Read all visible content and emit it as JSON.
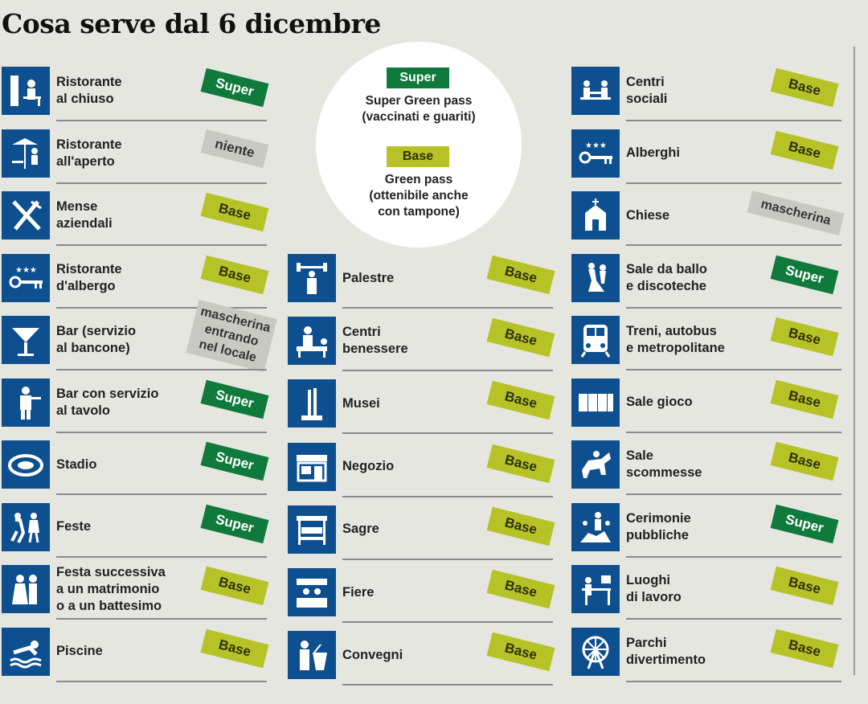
{
  "title": "Cosa serve dal 6 dicembre",
  "legend": {
    "super_badge": "Super",
    "super_text": "Super Green pass\n(vaccinati e guariti)",
    "base_badge": "Base",
    "base_text": "Green pass\n(ottenibile anche\ncon tampone)"
  },
  "colors": {
    "icon_bg": "#0e4f8f",
    "base": "#b6c225",
    "super": "#0f7a3b",
    "neutral": "#c9c9c4"
  },
  "col1": [
    {
      "label": "Ristorante\nal chiuso",
      "badge": "Super",
      "type": "super",
      "icon": "restaurant-indoor-icon"
    },
    {
      "label": "Ristorante\nall'aperto",
      "badge": "niente",
      "type": "niente",
      "icon": "restaurant-outdoor-icon"
    },
    {
      "label": "Mense\naziendali",
      "badge": "Base",
      "type": "base",
      "icon": "fork-knife-icon"
    },
    {
      "label": "Ristorante\nd'albergo",
      "badge": "Base",
      "type": "base",
      "icon": "hotel-key-icon"
    },
    {
      "label": "Bar (servizio\nal bancone)",
      "badge": "mascherina\nentrando\nnel locale",
      "type": "multi",
      "icon": "cocktail-icon"
    },
    {
      "label": "Bar con servizio\nal tavolo",
      "badge": "Super",
      "type": "super",
      "icon": "waiter-icon"
    },
    {
      "label": "Stadio",
      "badge": "Super",
      "type": "super",
      "icon": "stadium-icon"
    },
    {
      "label": "Feste",
      "badge": "Super",
      "type": "super",
      "icon": "party-icon"
    },
    {
      "label": "Festa successiva\na un matrimonio\no a un battesimo",
      "badge": "Base",
      "type": "base",
      "icon": "wedding-icon"
    },
    {
      "label": "Piscine",
      "badge": "Base",
      "type": "base",
      "icon": "swimmer-icon"
    }
  ],
  "col2": [
    {
      "label": "Palestre",
      "badge": "Base",
      "type": "base",
      "icon": "weightlifting-icon"
    },
    {
      "label": "Centri\nbenessere",
      "badge": "Base",
      "type": "base",
      "icon": "spa-massage-icon"
    },
    {
      "label": "Musei",
      "badge": "Base",
      "type": "base",
      "icon": "museum-icon"
    },
    {
      "label": "Negozio",
      "badge": "Base",
      "type": "base",
      "icon": "shop-icon"
    },
    {
      "label": "Sagre",
      "badge": "Base",
      "type": "base",
      "icon": "food-stall-icon"
    },
    {
      "label": "Fiere",
      "badge": "Base",
      "type": "base",
      "icon": "fair-stand-icon"
    },
    {
      "label": "Convegni",
      "badge": "Base",
      "type": "base",
      "icon": "speaker-podium-icon"
    }
  ],
  "col3": [
    {
      "label": "Centri\nsociali",
      "badge": "Base",
      "type": "base",
      "icon": "social-center-icon"
    },
    {
      "label": "Alberghi",
      "badge": "Base",
      "type": "base",
      "icon": "hotel-key-icon"
    },
    {
      "label": "Chiese",
      "badge": "mascherina",
      "type": "mask",
      "icon": "church-icon"
    },
    {
      "label": "Sale da ballo\ne discoteche",
      "badge": "Super",
      "type": "super",
      "icon": "dancing-icon"
    },
    {
      "label": "Treni, autobus\ne metropolitane",
      "badge": "Base",
      "type": "base",
      "icon": "train-icon"
    },
    {
      "label": "Sale gioco",
      "badge": "Base",
      "type": "base",
      "icon": "playing-cards-icon"
    },
    {
      "label": "Sale\nscommesse",
      "badge": "Base",
      "type": "base",
      "icon": "horse-racing-icon"
    },
    {
      "label": "Cerimonie\npubbliche",
      "badge": "Super",
      "type": "super",
      "icon": "ceremony-icon"
    },
    {
      "label": "Luoghi\ndi lavoro",
      "badge": "Base",
      "type": "base",
      "icon": "office-desk-icon"
    },
    {
      "label": "Parchi\ndivertimento",
      "badge": "Base",
      "type": "base",
      "icon": "ferris-wheel-icon"
    }
  ]
}
